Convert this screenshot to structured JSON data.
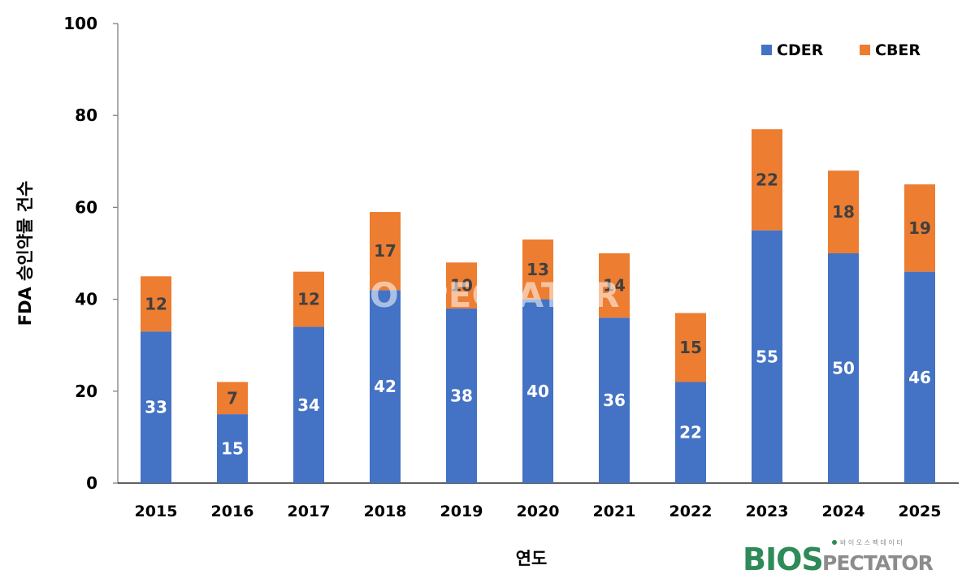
{
  "chart_data": {
    "type": "bar",
    "stacked": true,
    "title": "",
    "xlabel": "연도",
    "ylabel": "FDA 승인약물 건수",
    "ylim": [
      0,
      100
    ],
    "yticks": [
      0,
      20,
      40,
      60,
      80,
      100
    ],
    "grid": false,
    "legend_position": "top-right",
    "categories": [
      "2015",
      "2016",
      "2017",
      "2018",
      "2019",
      "2020",
      "2021",
      "2022",
      "2023",
      "2024",
      "2025"
    ],
    "series": [
      {
        "name": "CDER",
        "color": "#4472C4",
        "values": [
          33,
          15,
          34,
          42,
          38,
          40,
          36,
          22,
          55,
          50,
          46
        ]
      },
      {
        "name": "CBER",
        "color": "#ED7D31",
        "values": [
          12,
          7,
          12,
          17,
          10,
          13,
          14,
          15,
          22,
          18,
          19
        ]
      }
    ]
  },
  "labels": {
    "ylabel": "FDA 승인약물 건수",
    "xlabel": "연도",
    "legend_cder": "CDER",
    "legend_cber": "CBER"
  },
  "watermark": {
    "brand_main": "BIOS",
    "brand_rest": "PECTATOR",
    "brand_korean": "바 이 오 스 펙 테 이 터",
    "center_text": "BIOSPECTATOR"
  },
  "colors": {
    "cder": "#4472C4",
    "cber": "#ED7D31",
    "brand_green": "#2E8B57",
    "brand_gray": "#8C8C8C"
  }
}
